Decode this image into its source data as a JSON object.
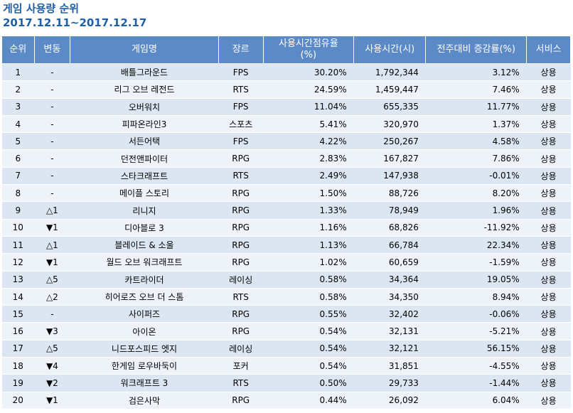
{
  "title": "게임 사용량 순위",
  "subtitle": "2017.12.11~2017.12.17",
  "headers": [
    "순위",
    "변동",
    "게임명",
    "장르",
    "사용시간점유율\n(%)",
    "사용시간(시)",
    "전주대비 증감률(%)",
    "서비스"
  ],
  "rows": [
    [
      "1",
      "-",
      "배틀그라운드",
      "FPS",
      "30.20%",
      "1,792,344",
      "3.12%",
      "상용"
    ],
    [
      "2",
      "-",
      "리그 오브 레전드",
      "RTS",
      "24.59%",
      "1,459,447",
      "7.46%",
      "상용"
    ],
    [
      "3",
      "-",
      "오버워치",
      "FPS",
      "11.04%",
      "655,335",
      "11.77%",
      "상용"
    ],
    [
      "4",
      "-",
      "피파온라인3",
      "스포츠",
      "5.41%",
      "320,970",
      "1.37%",
      "상용"
    ],
    [
      "5",
      "-",
      "서든어택",
      "FPS",
      "4.22%",
      "250,267",
      "4.58%",
      "상용"
    ],
    [
      "6",
      "-",
      "던전앤파이터",
      "RPG",
      "2.83%",
      "167,827",
      "7.86%",
      "상용"
    ],
    [
      "7",
      "-",
      "스타크래프트",
      "RTS",
      "2.49%",
      "147,938",
      "-0.01%",
      "상용"
    ],
    [
      "8",
      "-",
      "메이플 스토리",
      "RPG",
      "1.50%",
      "88,726",
      "8.20%",
      "상용"
    ],
    [
      "9",
      "△1",
      "리니지",
      "RPG",
      "1.33%",
      "78,949",
      "1.96%",
      "상용"
    ],
    [
      "10",
      "▼1",
      "디아블로 3",
      "RPG",
      "1.16%",
      "68,826",
      "-11.92%",
      "상용"
    ],
    [
      "11",
      "△1",
      "블레이드 & 소울",
      "RPG",
      "1.13%",
      "66,784",
      "22.34%",
      "상용"
    ],
    [
      "12",
      "▼1",
      "월드 오브 워크래프트",
      "RPG",
      "1.02%",
      "60,659",
      "-1.59%",
      "상용"
    ],
    [
      "13",
      "△5",
      "카트라이더",
      "레이싱",
      "0.58%",
      "34,364",
      "19.05%",
      "상용"
    ],
    [
      "14",
      "△2",
      "히어로즈 오브 더 스톰",
      "RTS",
      "0.58%",
      "34,350",
      "8.94%",
      "상용"
    ],
    [
      "15",
      "-",
      "사이퍼즈",
      "RPG",
      "0.55%",
      "32,402",
      "-0.06%",
      "상용"
    ],
    [
      "16",
      "▼3",
      "아이온",
      "RPG",
      "0.54%",
      "32,131",
      "-5.21%",
      "상용"
    ],
    [
      "17",
      "△5",
      "니드포스피드 엣지",
      "레이싱",
      "0.54%",
      "32,121",
      "56.15%",
      "상용"
    ],
    [
      "18",
      "▼4",
      "한게임 로우바둑이",
      "포커",
      "0.54%",
      "31,851",
      "-4.55%",
      "상용"
    ],
    [
      "19",
      "▼2",
      "워크래프트 3",
      "RTS",
      "0.50%",
      "29,733",
      "-1.44%",
      "상용"
    ],
    [
      "20",
      "▼1",
      "검은사막",
      "RPG",
      "0.44%",
      "26,092",
      "6.04%",
      "상용"
    ]
  ]
}
